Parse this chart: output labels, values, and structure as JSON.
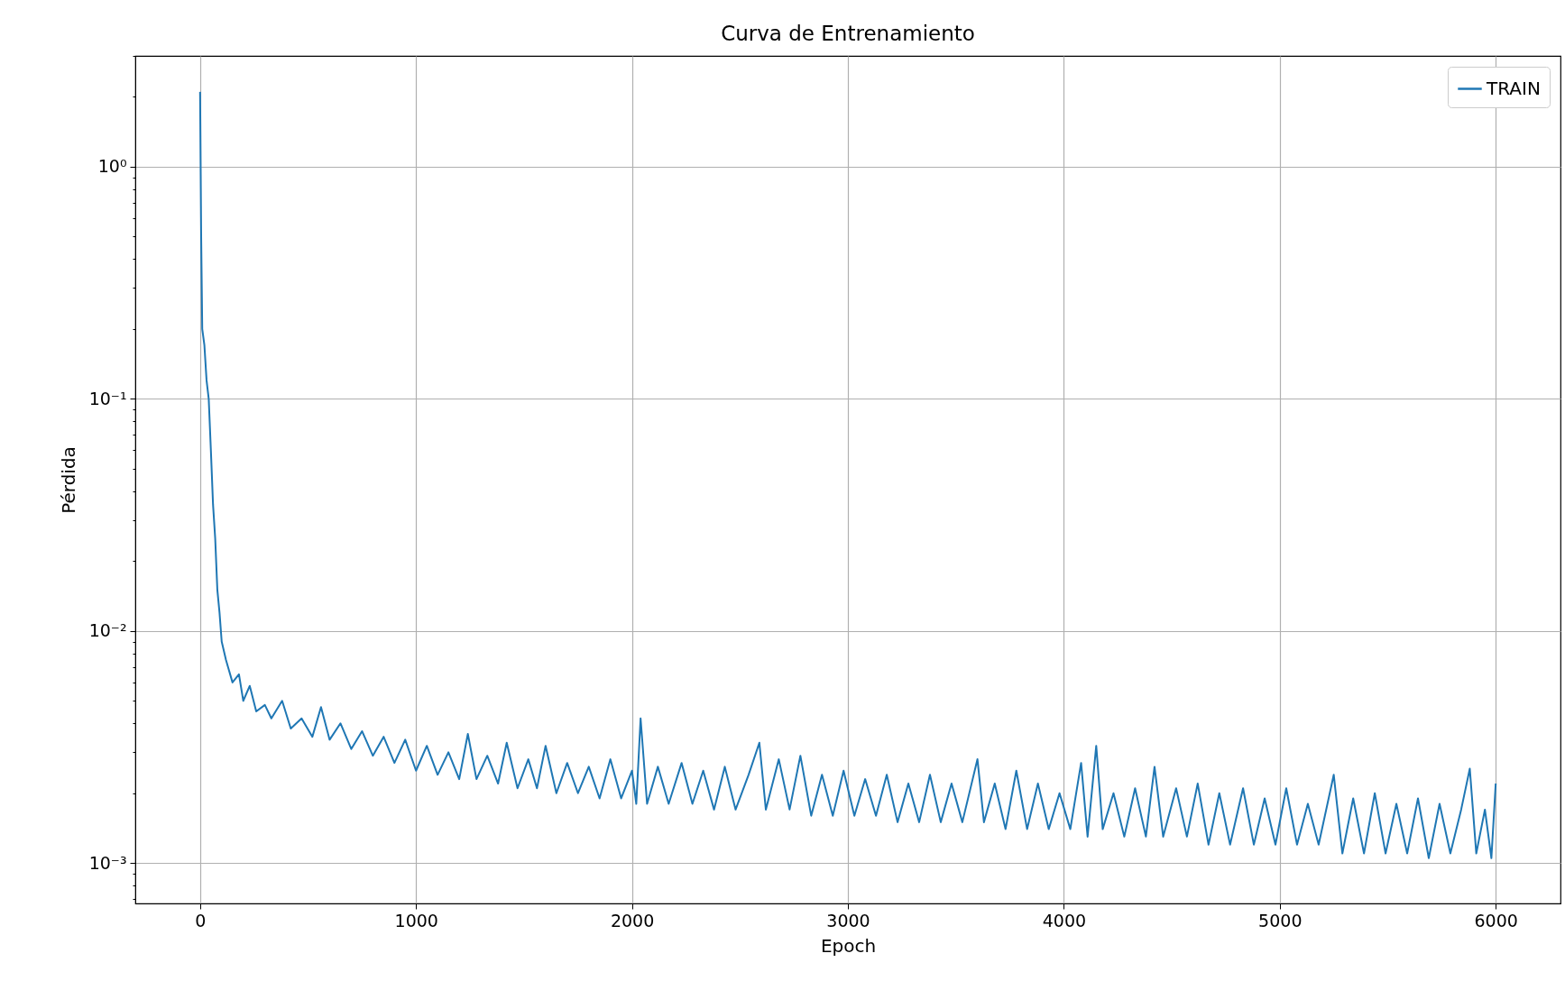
{
  "chart_data": {
    "type": "line",
    "title": "Curva de Entrenamiento",
    "xlabel": "Epoch",
    "ylabel": "Pérdida",
    "log": "y",
    "grid": true,
    "legend": "top right",
    "line_style": "solid",
    "xlim": [
      -300,
      6300
    ],
    "xticks": [
      0,
      1000,
      2000,
      3000,
      4000,
      5000,
      6000
    ],
    "ylim": [
      0.00067,
      3.0
    ],
    "yticks": [
      {
        "value": 0.0007,
        "label": null
      },
      {
        "value": 0.0008,
        "label": null
      },
      {
        "value": 0.0009,
        "label": null
      },
      {
        "value": 0.001,
        "label": "10⁻³"
      },
      {
        "value": 0.002,
        "label": null
      },
      {
        "value": 0.003,
        "label": null
      },
      {
        "value": 0.004,
        "label": null
      },
      {
        "value": 0.005,
        "label": null
      },
      {
        "value": 0.006,
        "label": null
      },
      {
        "value": 0.007,
        "label": null
      },
      {
        "value": 0.008,
        "label": null
      },
      {
        "value": 0.009,
        "label": null
      },
      {
        "value": 0.01,
        "label": "10⁻²"
      },
      {
        "value": 0.02,
        "label": null
      },
      {
        "value": 0.03,
        "label": null
      },
      {
        "value": 0.04,
        "label": null
      },
      {
        "value": 0.05,
        "label": null
      },
      {
        "value": 0.06,
        "label": null
      },
      {
        "value": 0.07,
        "label": null
      },
      {
        "value": 0.08,
        "label": null
      },
      {
        "value": 0.09,
        "label": null
      },
      {
        "value": 0.1,
        "label": "10⁻¹"
      },
      {
        "value": 0.2,
        "label": null
      },
      {
        "value": 0.3,
        "label": null
      },
      {
        "value": 0.4,
        "label": null
      },
      {
        "value": 0.5,
        "label": null
      },
      {
        "value": 0.6,
        "label": null
      },
      {
        "value": 0.7,
        "label": null
      },
      {
        "value": 0.8,
        "label": null
      },
      {
        "value": 0.9,
        "label": null
      },
      {
        "value": 1,
        "label": "10⁰"
      },
      {
        "value": 2,
        "label": null
      },
      {
        "value": 3,
        "label": null
      }
    ],
    "x": [
      0,
      5,
      10,
      20,
      30,
      40,
      50,
      60,
      70,
      80,
      90,
      100,
      120,
      150,
      180,
      200,
      230,
      260,
      300,
      330,
      380,
      420,
      470,
      520,
      560,
      600,
      650,
      700,
      750,
      800,
      850,
      900,
      950,
      1000,
      1050,
      1100,
      1150,
      1200,
      1240,
      1280,
      1330,
      1380,
      1420,
      1470,
      1520,
      1560,
      1600,
      1650,
      1700,
      1750,
      1800,
      1850,
      1900,
      1950,
      2000,
      2020,
      2040,
      2070,
      2120,
      2170,
      2230,
      2280,
      2330,
      2380,
      2430,
      2480,
      2540,
      2590,
      2620,
      2680,
      2730,
      2780,
      2830,
      2880,
      2930,
      2980,
      3030,
      3080,
      3130,
      3180,
      3230,
      3280,
      3330,
      3380,
      3430,
      3480,
      3530,
      3600,
      3630,
      3680,
      3730,
      3780,
      3830,
      3880,
      3930,
      3980,
      4030,
      4080,
      4110,
      4150,
      4180,
      4230,
      4280,
      4330,
      4380,
      4420,
      4460,
      4520,
      4570,
      4620,
      4670,
      4720,
      4770,
      4830,
      4880,
      4930,
      4980,
      5030,
      5080,
      5130,
      5180,
      5250,
      5290,
      5340,
      5390,
      5440,
      5490,
      5540,
      5590,
      5640,
      5690,
      5740,
      5790,
      5840,
      5880,
      5910,
      5950,
      5980,
      6000
    ],
    "series": [
      {
        "name": "TRAIN",
        "color": "#1f77b4",
        "values": [
          2.1,
          0.5,
          0.2,
          0.17,
          0.12,
          0.1,
          0.06,
          0.035,
          0.025,
          0.015,
          0.012,
          0.009,
          0.0075,
          0.006,
          0.0065,
          0.005,
          0.0058,
          0.0045,
          0.0048,
          0.0042,
          0.005,
          0.0038,
          0.0042,
          0.0035,
          0.0047,
          0.0034,
          0.004,
          0.0031,
          0.0037,
          0.0029,
          0.0035,
          0.0027,
          0.0034,
          0.0025,
          0.0032,
          0.0024,
          0.003,
          0.0023,
          0.0036,
          0.0023,
          0.0029,
          0.0022,
          0.0033,
          0.0021,
          0.0028,
          0.0021,
          0.0032,
          0.002,
          0.0027,
          0.002,
          0.0026,
          0.0019,
          0.0028,
          0.0019,
          0.0025,
          0.0018,
          0.0042,
          0.0018,
          0.0026,
          0.0018,
          0.0027,
          0.0018,
          0.0025,
          0.0017,
          0.0026,
          0.0017,
          0.0024,
          0.0033,
          0.0017,
          0.0028,
          0.0017,
          0.0029,
          0.0016,
          0.0024,
          0.0016,
          0.0025,
          0.0016,
          0.0023,
          0.0016,
          0.0024,
          0.0015,
          0.0022,
          0.0015,
          0.0024,
          0.0015,
          0.0022,
          0.0015,
          0.0028,
          0.0015,
          0.0022,
          0.0014,
          0.0025,
          0.0014,
          0.0022,
          0.0014,
          0.002,
          0.0014,
          0.0027,
          0.0013,
          0.0032,
          0.0014,
          0.002,
          0.0013,
          0.0021,
          0.0013,
          0.0026,
          0.0013,
          0.0021,
          0.0013,
          0.0022,
          0.0012,
          0.002,
          0.0012,
          0.0021,
          0.0012,
          0.0019,
          0.0012,
          0.0021,
          0.0012,
          0.0018,
          0.0012,
          0.0024,
          0.0011,
          0.0019,
          0.0011,
          0.002,
          0.0011,
          0.0018,
          0.0011,
          0.0019,
          0.00105,
          0.0018,
          0.0011,
          0.0017,
          0.00255,
          0.0011,
          0.0017,
          0.00105,
          0.0022
        ]
      }
    ]
  }
}
